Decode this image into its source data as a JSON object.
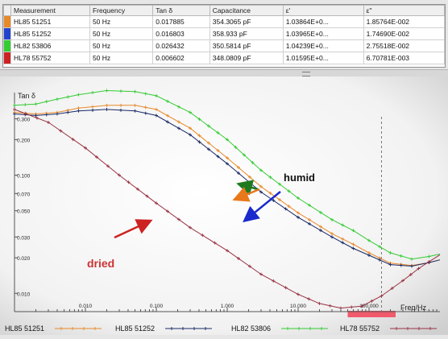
{
  "table": {
    "headers": [
      "Measurement",
      "Frequency",
      "Tan δ",
      "Capacitance",
      "ε'",
      "ε''"
    ],
    "rows": [
      {
        "swatch": "#e8892a",
        "name": "HL85 51251",
        "frequency": "50 Hz",
        "tan": "0.017885",
        "capacitance": "354.3065 pF",
        "eps1": "1.03864E+0...",
        "eps2": "1.85764E-002"
      },
      {
        "swatch": "#2244cc",
        "name": "HL85 51252",
        "frequency": "50 Hz",
        "tan": "0.016803",
        "capacitance": "358.933 pF",
        "eps1": "1.03965E+0...",
        "eps2": "1.74690E-002"
      },
      {
        "swatch": "#33cc33",
        "name": "HL82 53806",
        "frequency": "50 Hz",
        "tan": "0.026432",
        "capacitance": "350.5814 pF",
        "eps1": "1.04239E+0...",
        "eps2": "2.75518E-002"
      },
      {
        "swatch": "#cc2222",
        "name": "HL78 55752",
        "frequency": "50 Hz",
        "tan": "0.006602",
        "capacitance": "348.0809 pF",
        "eps1": "1.01595E+0...",
        "eps2": "6.70781E-003"
      }
    ]
  },
  "chart_data": {
    "type": "line",
    "ylabel": "Tan δ",
    "xlabel": "Freq/Hz",
    "x_scale": "log",
    "y_scale": "log",
    "xlim": [
      0.001,
      1000
    ],
    "ylim": [
      0.007,
      0.5
    ],
    "x_ticks": [
      "0.010",
      "0.100",
      "1.000",
      "10.000",
      "100.000"
    ],
    "y_ticks": [
      "0.300",
      "0.200",
      "0.100",
      "0.070",
      "0.050",
      "0.030",
      "0.020",
      "0.010"
    ],
    "series": [
      {
        "name": "HL85 51251",
        "color": "#e8892a",
        "marker": "+",
        "points": [
          [
            0.001,
            0.34
          ],
          [
            0.002,
            0.33
          ],
          [
            0.004,
            0.34
          ],
          [
            0.008,
            0.37
          ],
          [
            0.02,
            0.39
          ],
          [
            0.05,
            0.39
          ],
          [
            0.1,
            0.36
          ],
          [
            0.3,
            0.25
          ],
          [
            1,
            0.14
          ],
          [
            3,
            0.08
          ],
          [
            10,
            0.048
          ],
          [
            30,
            0.032
          ],
          [
            60,
            0.026
          ],
          [
            100,
            0.022
          ],
          [
            200,
            0.018
          ],
          [
            400,
            0.0172
          ],
          [
            700,
            0.0182
          ],
          [
            1000,
            0.0192
          ]
        ]
      },
      {
        "name": "HL85 51252",
        "color": "#1a2a66",
        "marker": "+",
        "points": [
          [
            0.001,
            0.33
          ],
          [
            0.002,
            0.32
          ],
          [
            0.004,
            0.33
          ],
          [
            0.008,
            0.35
          ],
          [
            0.02,
            0.36
          ],
          [
            0.05,
            0.35
          ],
          [
            0.1,
            0.32
          ],
          [
            0.3,
            0.22
          ],
          [
            1,
            0.125
          ],
          [
            3,
            0.072
          ],
          [
            10,
            0.044
          ],
          [
            30,
            0.03
          ],
          [
            60,
            0.024
          ],
          [
            100,
            0.021
          ],
          [
            200,
            0.0175
          ],
          [
            400,
            0.017
          ],
          [
            700,
            0.0182
          ],
          [
            1000,
            0.0192
          ]
        ]
      },
      {
        "name": "HL82 53806",
        "color": "#33cc33",
        "marker": "+",
        "points": [
          [
            0.001,
            0.39
          ],
          [
            0.002,
            0.4
          ],
          [
            0.004,
            0.44
          ],
          [
            0.008,
            0.48
          ],
          [
            0.02,
            0.52
          ],
          [
            0.05,
            0.51
          ],
          [
            0.1,
            0.47
          ],
          [
            0.3,
            0.34
          ],
          [
            1,
            0.2
          ],
          [
            3,
            0.11
          ],
          [
            10,
            0.064
          ],
          [
            30,
            0.042
          ],
          [
            60,
            0.034
          ],
          [
            100,
            0.028
          ],
          [
            200,
            0.022
          ],
          [
            400,
            0.0195
          ],
          [
            700,
            0.0205
          ],
          [
            1000,
            0.0215
          ]
        ]
      },
      {
        "name": "HL78 55752",
        "color": "#993344",
        "marker": "+",
        "points": [
          [
            0.001,
            0.36
          ],
          [
            0.003,
            0.28
          ],
          [
            0.01,
            0.17
          ],
          [
            0.03,
            0.1
          ],
          [
            0.1,
            0.058
          ],
          [
            0.3,
            0.036
          ],
          [
            1,
            0.023
          ],
          [
            3,
            0.0145
          ],
          [
            10,
            0.0098
          ],
          [
            20,
            0.0082
          ],
          [
            40,
            0.0075
          ],
          [
            80,
            0.0078
          ],
          [
            150,
            0.0095
          ],
          [
            300,
            0.0128
          ],
          [
            500,
            0.0162
          ],
          [
            700,
            0.0185
          ],
          [
            1000,
            0.0212
          ]
        ]
      }
    ],
    "annotations": [
      {
        "text": "humid",
        "color": "#111111"
      },
      {
        "text": "dried",
        "color": "#cc3333"
      }
    ],
    "highlight_range": [
      50,
      1000
    ],
    "dashed_marker_x": 150
  }
}
